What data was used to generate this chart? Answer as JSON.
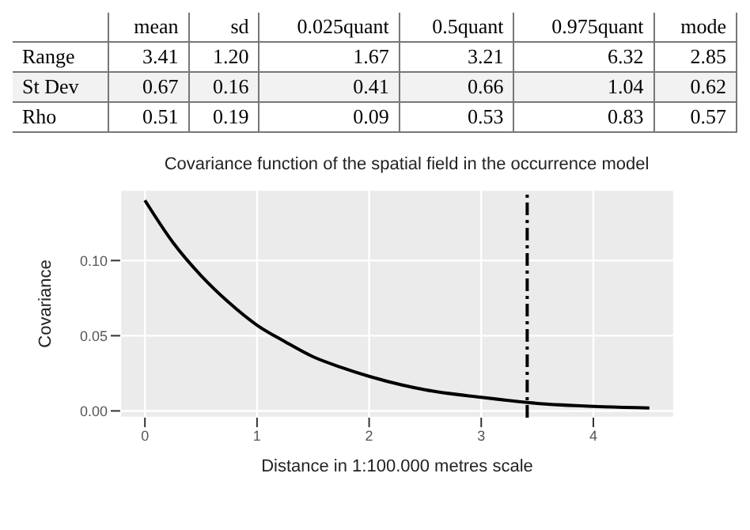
{
  "chart_data": [
    {
      "type": "other",
      "categories": [
        "mean",
        "sd",
        "0.025quant",
        "0.5quant",
        "0.975quant",
        "mode"
      ],
      "y_categories": [
        "Range",
        "St Dev",
        "Rho"
      ],
      "cell_labels": [
        [
          "3.41",
          "1.20",
          "1.67",
          "3.21",
          "6.32",
          "2.85"
        ],
        [
          "0.67",
          "0.16",
          "0.41",
          "0.66",
          "1.04",
          "0.62"
        ],
        [
          "0.51",
          "0.19",
          "0.09",
          "0.53",
          "0.83",
          "0.57"
        ]
      ]
    },
    {
      "type": "line",
      "title": "Covariance function of the spatial field in the occurrence model",
      "xlabel": "Distance in 1:100.000 metres scale",
      "ylabel": "Covariance",
      "x": [
        0,
        0.25,
        0.5,
        0.75,
        1,
        1.25,
        1.5,
        1.75,
        2,
        2.5,
        3,
        3.5,
        4,
        4.5
      ],
      "series": [
        {
          "color": "#000000",
          "values": [
            0.14,
            0.112,
            0.09,
            0.072,
            0.057,
            0.046,
            0.036,
            0.029,
            0.023,
            0.014,
            0.009,
            0.005,
            0.003,
            0.002
          ]
        }
      ],
      "xlim": [
        -0.22,
        4.72
      ],
      "ylim": [
        -0.0045,
        0.147
      ],
      "xticks": [
        0,
        1,
        2,
        3,
        4
      ],
      "yticks": [
        {
          "value": 0,
          "label": "0.00"
        },
        {
          "value": 0.05,
          "label": "0.05"
        },
        {
          "value": 0.1,
          "label": "0.10"
        }
      ],
      "grid": true,
      "marker": "none",
      "line_style": "solid",
      "ref_lines": [
        {
          "axis": "x",
          "value": 3.41,
          "color": "#000000",
          "line_style": "dashdot"
        }
      ]
    }
  ]
}
